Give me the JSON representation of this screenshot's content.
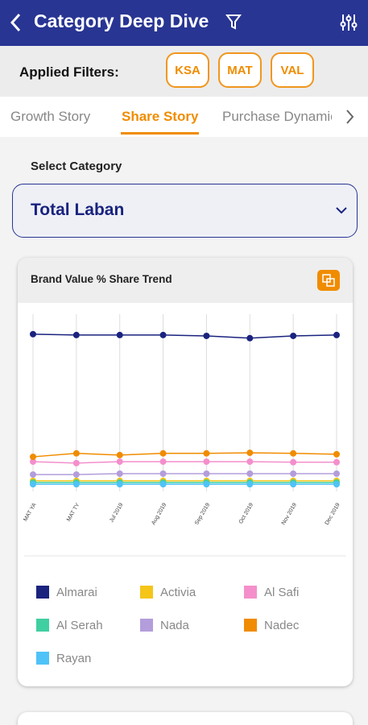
{
  "header": {
    "title": "Category Deep Dive"
  },
  "filters": {
    "label": "Applied Filters:",
    "chips": [
      "KSA",
      "MAT",
      "VAL"
    ]
  },
  "tabs": [
    "Growth Story",
    "Share Story",
    "Purchase Dynamics"
  ],
  "select": {
    "label": "Select Category",
    "value": "Total Laban"
  },
  "chart_data": {
    "type": "line",
    "title": "Brand Value % Share Trend",
    "categories": [
      "MAT YA",
      "MAT TY",
      "Jul 2019",
      "Aug 2019",
      "Sep 2019",
      "Oct 2019",
      "Nov 2019",
      "Dec 2019"
    ],
    "ylim": [
      0,
      62
    ],
    "grid": true,
    "series": [
      {
        "name": "Almarai",
        "color": "#1a237e",
        "values": [
          55.0,
          54.7,
          54.7,
          54.7,
          54.4,
          53.6,
          54.4,
          54.7
        ]
      },
      {
        "name": "Activia",
        "color": "#f5c518",
        "values": [
          3.7,
          3.7,
          3.7,
          3.7,
          3.7,
          3.7,
          3.7,
          3.7
        ]
      },
      {
        "name": "Al Safi",
        "color": "#f48fcb",
        "values": [
          10.4,
          9.9,
          10.4,
          10.4,
          10.4,
          10.4,
          10.2,
          10.2
        ]
      },
      {
        "name": "Al Serah",
        "color": "#3fcfa0",
        "values": [
          3.1,
          3.1,
          3.1,
          3.1,
          3.1,
          3.1,
          3.1,
          3.1
        ]
      },
      {
        "name": "Nada",
        "color": "#b39ddb",
        "values": [
          5.9,
          5.9,
          6.2,
          6.2,
          6.2,
          6.2,
          6.2,
          6.2
        ]
      },
      {
        "name": "Nadec",
        "color": "#f08c00",
        "values": [
          12.1,
          13.3,
          12.7,
          13.3,
          13.3,
          13.5,
          13.3,
          13.0
        ]
      },
      {
        "name": "Rayan",
        "color": "#4fc3f7",
        "values": [
          2.5,
          2.5,
          2.5,
          2.5,
          2.5,
          2.5,
          2.5,
          2.5
        ]
      }
    ]
  }
}
